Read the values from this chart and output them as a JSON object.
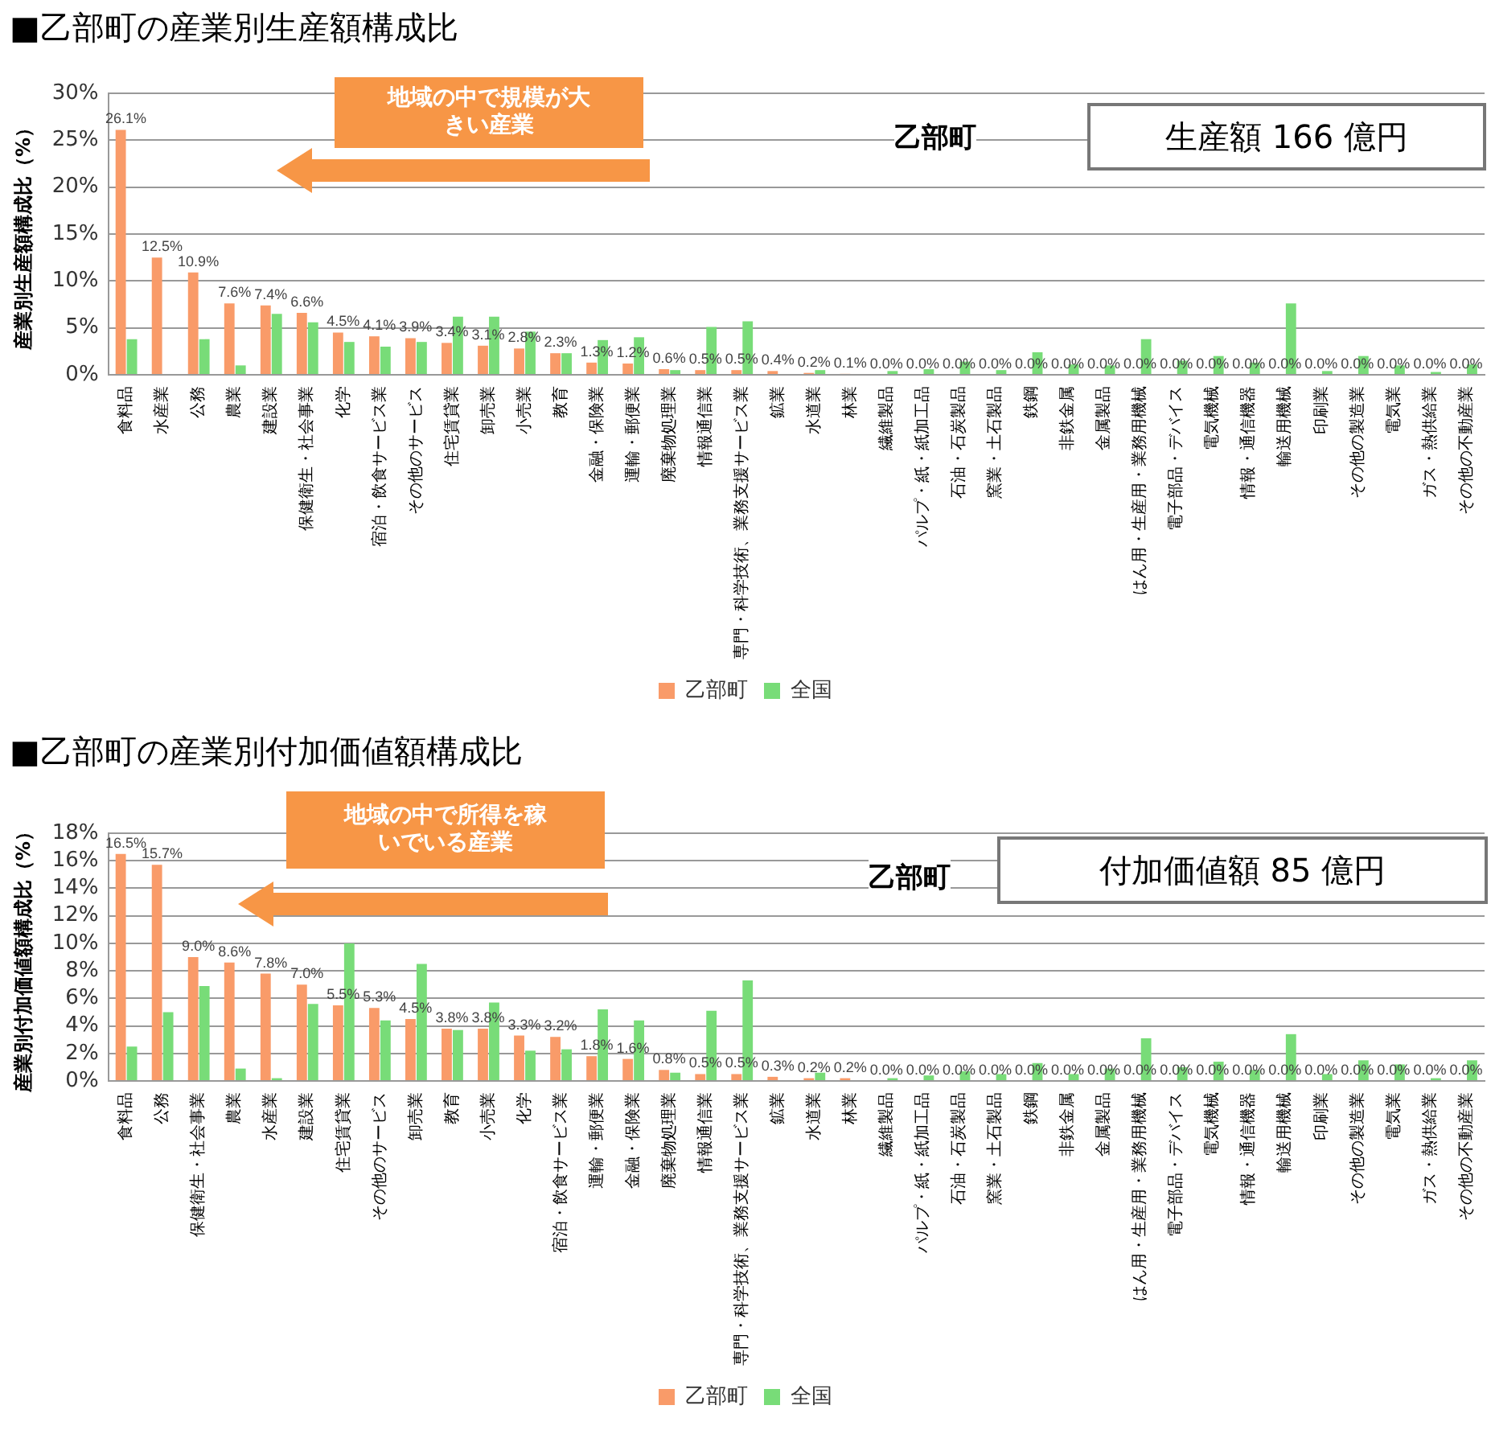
{
  "chart_data": [
    {
      "type": "bar",
      "title": "■乙部町の産業別生産額構成比",
      "ylabel": "産業別生産額構成比（%）",
      "annotations": [
        "地域の中で規模が大きい産業",
        "乙部町",
        "生産額 166 億円"
      ],
      "categories": [
        "食料品",
        "水産業",
        "公務",
        "農業",
        "建設業",
        "保健衛生・社会事業",
        "化学",
        "宿泊・飲食サービス業",
        "その他のサービス",
        "住宅賃貸業",
        "卸売業",
        "小売業",
        "教育",
        "金融・保険業",
        "運輸・郵便業",
        "廃棄物処理業",
        "情報通信業",
        "専門・科学技術、業務支援サービス業",
        "鉱業",
        "水道業",
        "林業",
        "繊維製品",
        "パルプ・紙・紙加工品",
        "石油・石炭製品",
        "窯業・土石製品",
        "鉄鋼",
        "非鉄金属",
        "金属製品",
        "はん用・生産用・業務用機械",
        "電子部品・デバイス",
        "電気機械",
        "情報・通信機器",
        "輸送用機械",
        "印刷業",
        "その他の製造業",
        "電気業",
        "ガス・熱供給業",
        "その他の不動産業"
      ],
      "series": [
        {
          "name": "乙部町",
          "color": "#f99b69",
          "values": [
            26.1,
            12.5,
            10.9,
            7.6,
            7.4,
            6.6,
            4.5,
            4.1,
            3.9,
            3.4,
            3.1,
            2.8,
            2.3,
            1.3,
            1.2,
            0.6,
            0.5,
            0.5,
            0.4,
            0.2,
            0.1,
            0,
            0,
            0,
            0,
            0,
            0,
            0,
            0,
            0,
            0,
            0,
            0,
            0,
            0,
            0,
            0,
            0
          ],
          "value_labels": [
            "26.1%",
            "12.5%",
            "10.9%",
            "7.6%",
            "7.4%",
            "6.6%",
            "4.5%",
            "4.1%",
            "3.9%",
            "3.4%",
            "3.1%",
            "2.8%",
            "2.3%",
            "1.3%",
            "1.2%",
            "0.6%",
            "0.5%",
            "0.5%",
            "0.4%",
            "0.2%",
            "0.1%",
            "0.0%",
            "0.0%",
            "0.0%",
            "0.0%",
            "0.0%",
            "0.0%",
            "0.0%",
            "0.0%",
            "0.0%",
            "0.0%",
            "0.0%",
            "0.0%",
            "0.0%",
            "0.0%",
            "0.0%",
            "0.0%",
            "0.0%"
          ]
        },
        {
          "name": "全国",
          "color": "#78dc78",
          "values": [
            3.8,
            0,
            3.8,
            1.0,
            6.5,
            5.6,
            3.5,
            3.0,
            3.5,
            6.2,
            6.2,
            4.6,
            2.3,
            3.7,
            4.0,
            0.5,
            5.1,
            5.7,
            0,
            0.5,
            0,
            0.4,
            0.6,
            1.4,
            0.5,
            2.4,
            1.1,
            1.0,
            3.8,
            1.5,
            2.0,
            1.3,
            7.6,
            0.4,
            2.0,
            1.0,
            0.3,
            1.1
          ]
        }
      ],
      "ylim": [
        0,
        30
      ],
      "yticks": [
        {
          "value": 0,
          "label": "0%"
        },
        {
          "value": 5,
          "label": "5%"
        },
        {
          "value": 10,
          "label": "10%"
        },
        {
          "value": 15,
          "label": "15%"
        },
        {
          "value": 20,
          "label": "20%"
        },
        {
          "value": 25,
          "label": "25%"
        },
        {
          "value": 30,
          "label": "30%"
        }
      ],
      "grid": "y",
      "legend": "bottom"
    },
    {
      "type": "bar",
      "title": "■乙部町の産業別付加価値額構成比",
      "ylabel": "産業別付加価値額構成比（%）",
      "annotations": [
        "地域の中で所得を稼いでいる産業",
        "乙部町",
        "付加価値額 85 億円"
      ],
      "categories": [
        "食料品",
        "公務",
        "保健衛生・社会事業",
        "農業",
        "水産業",
        "建設業",
        "住宅賃貸業",
        "その他のサービス",
        "卸売業",
        "教育",
        "小売業",
        "化学",
        "宿泊・飲食サービス業",
        "運輸・郵便業",
        "金融・保険業",
        "廃棄物処理業",
        "情報通信業",
        "専門・科学技術、業務支援サービス業",
        "鉱業",
        "水道業",
        "林業",
        "繊維製品",
        "パルプ・紙・紙加工品",
        "石油・石炭製品",
        "窯業・土石製品",
        "鉄鋼",
        "非鉄金属",
        "金属製品",
        "はん用・生産用・業務用機械",
        "電子部品・デバイス",
        "電気機械",
        "情報・通信機器",
        "輸送用機械",
        "印刷業",
        "その他の製造業",
        "電気業",
        "ガス・熱供給業",
        "その他の不動産業"
      ],
      "series": [
        {
          "name": "乙部町",
          "color": "#f99b69",
          "values": [
            16.5,
            15.7,
            9.0,
            8.6,
            7.8,
            7.0,
            5.5,
            5.3,
            4.5,
            3.8,
            3.8,
            3.3,
            3.2,
            1.8,
            1.6,
            0.8,
            0.5,
            0.5,
            0.3,
            0.2,
            0.2,
            0,
            0,
            0,
            0,
            0,
            0,
            0,
            0,
            0,
            0,
            0,
            0,
            0,
            0,
            0,
            0,
            0
          ],
          "value_labels": [
            "16.5%",
            "15.7%",
            "9.0%",
            "8.6%",
            "7.8%",
            "7.0%",
            "5.5%",
            "5.3%",
            "4.5%",
            "3.8%",
            "3.8%",
            "3.3%",
            "3.2%",
            "1.8%",
            "1.6%",
            "0.8%",
            "0.5%",
            "0.5%",
            "0.3%",
            "0.2%",
            "0.2%",
            "0.0%",
            "0.0%",
            "0.0%",
            "0.0%",
            "0.0%",
            "0.0%",
            "0.0%",
            "0.0%",
            "0.0%",
            "0.0%",
            "0.0%",
            "0.0%",
            "0.0%",
            "0.0%",
            "0.0%",
            "0.0%",
            "0.0%"
          ]
        },
        {
          "name": "全国",
          "color": "#78dc78",
          "values": [
            2.5,
            5.0,
            6.9,
            0.9,
            0.2,
            5.6,
            10.0,
            4.4,
            8.5,
            3.7,
            5.7,
            2.2,
            2.3,
            5.2,
            4.4,
            0.6,
            5.1,
            7.3,
            0,
            0.6,
            0,
            0.2,
            0.4,
            0.7,
            0.5,
            1.3,
            0.5,
            0.9,
            3.1,
            1.0,
            1.4,
            0.8,
            3.4,
            0.5,
            1.5,
            1.2,
            0.2,
            1.5
          ]
        }
      ],
      "ylim": [
        0,
        18
      ],
      "yticks": [
        {
          "value": 0,
          "label": "0%"
        },
        {
          "value": 2,
          "label": "2%"
        },
        {
          "value": 4,
          "label": "4%"
        },
        {
          "value": 6,
          "label": "6%"
        },
        {
          "value": 8,
          "label": "8%"
        },
        {
          "value": 10,
          "label": "10%"
        },
        {
          "value": 12,
          "label": "12%"
        },
        {
          "value": 14,
          "label": "14%"
        },
        {
          "value": 16,
          "label": "16%"
        },
        {
          "value": 18,
          "label": "18%"
        }
      ],
      "grid": "y",
      "legend": "bottom"
    }
  ]
}
